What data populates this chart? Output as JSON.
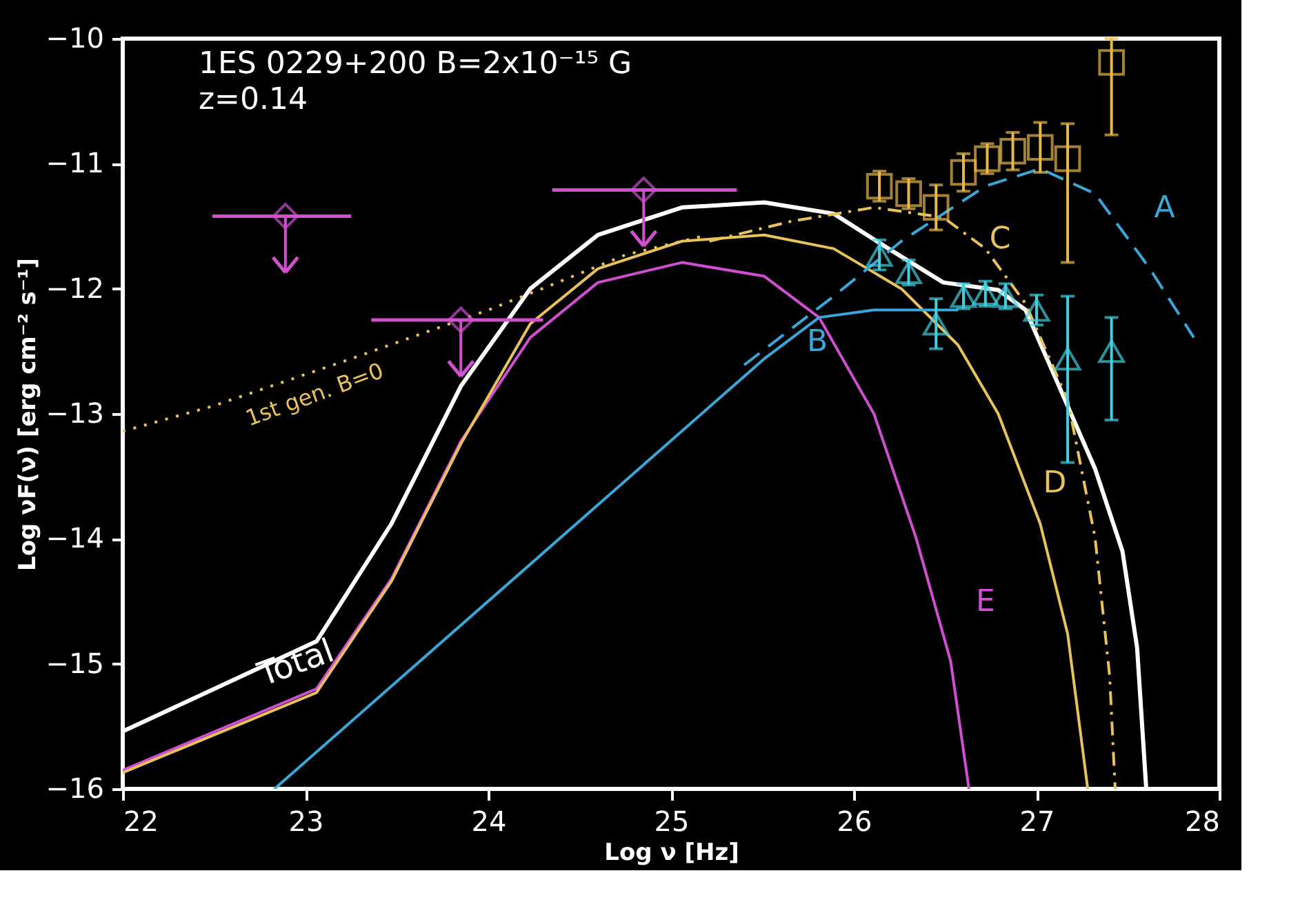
{
  "chart_data": {
    "type": "line",
    "title": "1ES 0229+200   B=2x10⁻¹⁵ G",
    "subtitle": "z=0.14",
    "xlabel": "Log ν [Hz]",
    "ylabel": "Log νF(ν) [erg cm⁻² s⁻¹]",
    "xlim": [
      22,
      28
    ],
    "xticks": [
      22,
      23,
      24,
      25,
      26,
      27,
      28
    ],
    "ylim": [
      -16,
      -10
    ],
    "yticks": [
      -16,
      -15,
      -14,
      -13,
      -12,
      -11,
      -10
    ],
    "series": [
      {
        "name": "Total",
        "color": "#ffffff",
        "line_style": "solid",
        "x": [
          22.0,
          23.06,
          23.47,
          23.85,
          24.23,
          24.6,
          25.06,
          25.51,
          25.89,
          26.19,
          26.49,
          26.79,
          26.94,
          27.09,
          27.32,
          27.47,
          27.55,
          27.6
        ],
        "values": [
          -15.54,
          -14.82,
          -13.88,
          -12.78,
          -12.0,
          -11.57,
          -11.35,
          -11.31,
          -11.4,
          -11.68,
          -11.95,
          -12.01,
          -12.17,
          -12.67,
          -13.44,
          -14.1,
          -14.87,
          -16.0
        ]
      },
      {
        "name": "E",
        "color": "#d04fd0",
        "line_style": "solid",
        "x": [
          22.0,
          23.06,
          23.47,
          23.85,
          24.23,
          24.6,
          25.06,
          25.51,
          25.81,
          26.11,
          26.34,
          26.53,
          26.63
        ],
        "values": [
          -15.85,
          -15.2,
          -14.32,
          -13.22,
          -12.39,
          -11.95,
          -11.79,
          -11.9,
          -12.23,
          -13.0,
          -13.99,
          -14.98,
          -16.0
        ]
      },
      {
        "name": "D",
        "color": "#e8c25a",
        "line_style": "solid",
        "x": [
          22.0,
          23.06,
          23.47,
          23.85,
          24.23,
          24.6,
          25.06,
          25.51,
          25.89,
          26.26,
          26.57,
          26.79,
          27.02,
          27.17,
          27.28
        ],
        "values": [
          -15.87,
          -15.23,
          -14.34,
          -13.24,
          -12.28,
          -11.84,
          -11.62,
          -11.57,
          -11.68,
          -12.0,
          -12.45,
          -13.0,
          -13.88,
          -14.76,
          -16.0
        ]
      },
      {
        "name": "C",
        "color": "#e8c25a",
        "line_style": "dashdot",
        "x": [
          25.21,
          25.66,
          26.11,
          26.49,
          26.72,
          26.94,
          27.17,
          27.32,
          27.4,
          27.43
        ],
        "values": [
          -11.62,
          -11.46,
          -11.35,
          -11.43,
          -11.68,
          -12.12,
          -12.89,
          -13.99,
          -15.1,
          -16.0
        ]
      },
      {
        "name": "B",
        "color": "#3aa7d8",
        "line_style": "solid",
        "x": [
          22.83,
          25.51,
          25.81,
          26.11,
          26.57
        ],
        "values": [
          -16.0,
          -12.56,
          -12.23,
          -12.17,
          -12.17
        ]
      },
      {
        "name": "A",
        "color": "#3aa7d8",
        "line_style": "dashed",
        "x": [
          25.4,
          25.89,
          26.26,
          26.72,
          27.02,
          27.32,
          27.62,
          27.86
        ],
        "values": [
          -12.61,
          -12.06,
          -11.62,
          -11.18,
          -11.04,
          -11.24,
          -11.84,
          -12.39
        ]
      },
      {
        "name": "1st gen. B=0",
        "color": "#e8c25a",
        "line_style": "dotted",
        "x": [
          22.0,
          22.49,
          23.25,
          24.0,
          24.38,
          24.75,
          25.2
        ],
        "values": [
          -13.14,
          -12.94,
          -12.56,
          -12.17,
          -11.95,
          -11.73,
          -11.57
        ]
      },
      {
        "type": "scatter",
        "marker": "square",
        "color": "#e8b84a",
        "x": [
          26.14,
          26.3,
          26.45,
          26.6,
          26.73,
          26.87,
          27.02,
          27.17,
          27.41
        ],
        "values": [
          -11.18,
          -11.24,
          -11.35,
          -11.07,
          -10.96,
          -10.9,
          -10.87,
          -10.96,
          -10.19
        ],
        "errors": [
          0.12,
          0.12,
          0.18,
          0.15,
          0.12,
          0.15,
          0.2,
          [
            -11.79,
            -10.68
          ],
          [
            -10.77,
            -10.0
          ]
        ]
      },
      {
        "type": "scatter",
        "marker": "triangle",
        "color": "#40d0e0",
        "x": [
          26.14,
          26.3,
          26.45,
          26.6,
          26.72,
          26.83,
          27.0,
          27.17,
          27.41
        ],
        "values": [
          -11.73,
          -11.87,
          -12.28,
          -12.06,
          -12.04,
          -12.06,
          -12.17,
          -12.56,
          -12.5
        ],
        "errors": [
          0.12,
          0.1,
          0.2,
          0.1,
          0.1,
          0.1,
          0.12,
          [
            -13.39,
            -12.06
          ],
          [
            -13.05,
            -12.23
          ]
        ]
      },
      {
        "type": "scatter",
        "marker": "diamond",
        "color": "#d050d0",
        "x": [
          22.89,
          23.85,
          24.85
        ],
        "values": [
          -11.42,
          -12.25,
          -11.21
        ],
        "errors": [
          [
            -11.87,
            -11.42
          ],
          [
            -12.7,
            -12.25
          ],
          [
            -11.66,
            -11.21
          ]
        ],
        "xerrors": [
          [
            22.49,
            23.25
          ],
          [
            23.36,
            24.3
          ],
          [
            24.35,
            25.36
          ]
        ]
      }
    ]
  }
}
